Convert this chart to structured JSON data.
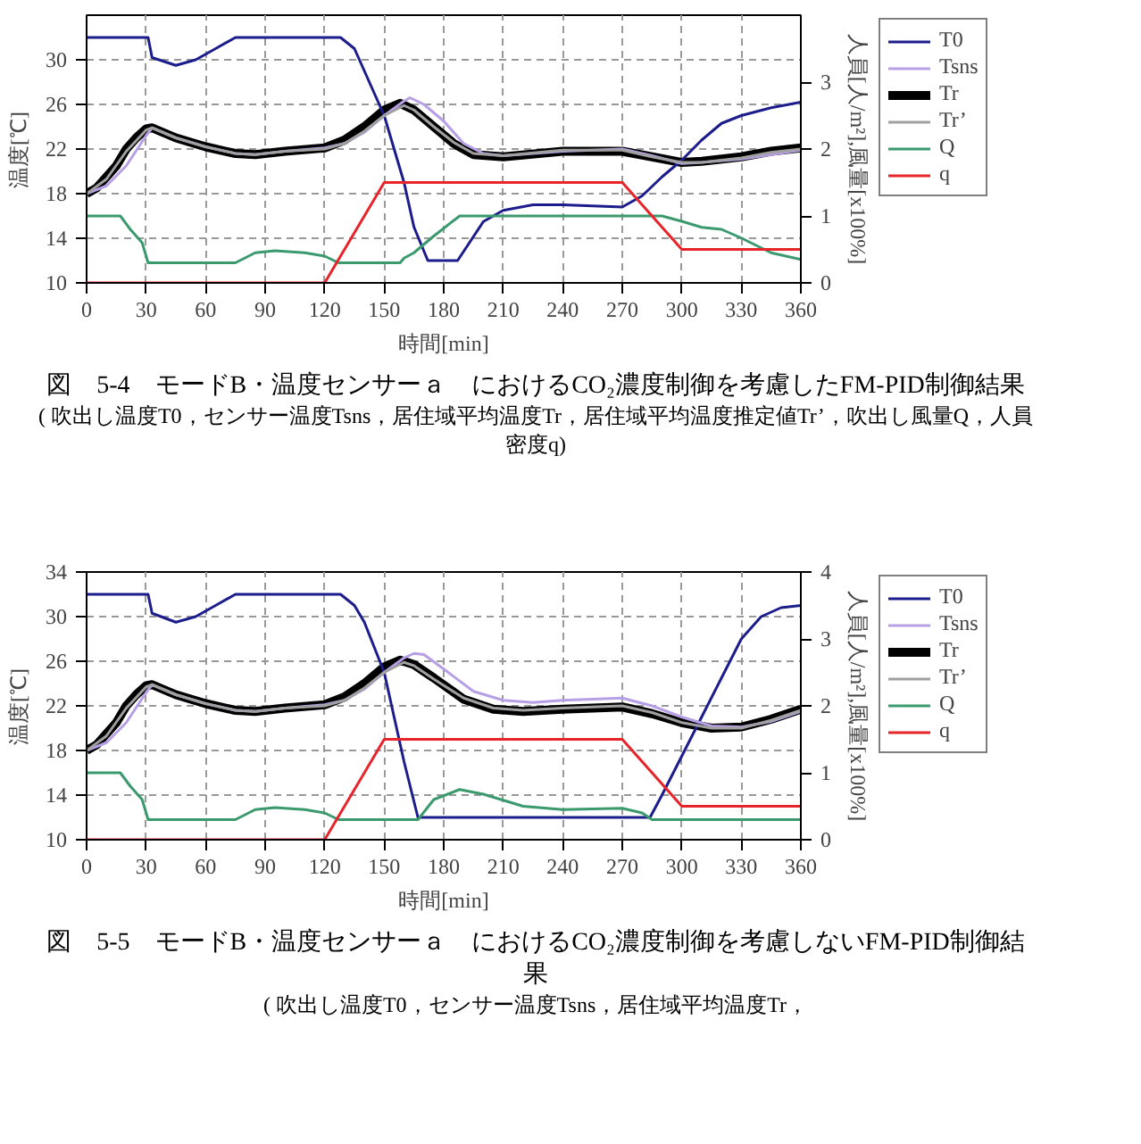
{
  "chart_data": [
    {
      "type": "line",
      "title": "図　5-4　モードB・温度センサーａ　におけるCO₂濃度制御を考慮したFM-PID制御結果",
      "annotations": [
        "( 吹出し温度T0，センサー温度Tsns，居住域平均温度Tr，居住域平均温度推定値Tr’，吹出し風量Q，人員密度q)"
      ],
      "xlabel": "時間[min]",
      "ylabel": "温度[℃]",
      "y2label": "人員[人/m²],風量[x100%]",
      "xlim": [
        0,
        360
      ],
      "xticks": [
        0,
        30,
        60,
        90,
        120,
        150,
        180,
        210,
        240,
        270,
        300,
        330,
        360
      ],
      "ylim": [
        10,
        34
      ],
      "yticks": [
        10,
        14,
        18,
        22,
        26,
        30
      ],
      "y2lim": [
        0,
        4
      ],
      "y2ticks": [
        0,
        1,
        2,
        3
      ],
      "grid": true,
      "legend": "right",
      "series": [
        {
          "name": "T0",
          "color": "#1c1c8c",
          "x": [
            0,
            31,
            33,
            45,
            55,
            65,
            75,
            128,
            135,
            140,
            150,
            160,
            165,
            172,
            187,
            200,
            210,
            225,
            240,
            270,
            280,
            290,
            300,
            310,
            320,
            330,
            345,
            360
          ],
          "values": [
            32,
            32,
            30.2,
            29.5,
            30,
            31,
            32,
            32,
            31,
            29,
            25,
            19,
            15,
            12,
            12,
            15.5,
            16.5,
            17,
            17,
            16.8,
            17.8,
            19.5,
            21,
            22.8,
            24.3,
            25,
            25.7,
            26.2
          ]
        },
        {
          "name": "Tsns",
          "color": "#b79fe6",
          "x": [
            0,
            10,
            20,
            30,
            33,
            45,
            60,
            75,
            85,
            100,
            120,
            130,
            140,
            150,
            160,
            163,
            170,
            180,
            190,
            200,
            210,
            240,
            270,
            285,
            300,
            310,
            330,
            360
          ],
          "values": [
            18,
            18.7,
            20.5,
            23.2,
            23.9,
            23,
            22.2,
            21.6,
            21.5,
            21.8,
            22.1,
            22.5,
            23.5,
            25,
            26.3,
            26.6,
            26,
            24.5,
            22.5,
            21.6,
            21.4,
            21.8,
            22,
            21.4,
            20.7,
            20.8,
            21.1,
            21.9
          ]
        },
        {
          "name": "Tr",
          "color": "#000000",
          "x": [
            0,
            5,
            10,
            15,
            20,
            25,
            30,
            33,
            45,
            60,
            75,
            85,
            100,
            120,
            130,
            140,
            150,
            158,
            165,
            175,
            185,
            195,
            210,
            240,
            270,
            285,
            300,
            310,
            330,
            345,
            360
          ],
          "values": [
            18,
            18.5,
            19.5,
            20.5,
            22,
            23,
            23.8,
            23.9,
            23,
            22.2,
            21.6,
            21.5,
            21.8,
            22.1,
            22.8,
            24,
            25.5,
            26.1,
            25.5,
            24,
            22.5,
            21.5,
            21.3,
            21.8,
            21.8,
            21.3,
            20.8,
            20.9,
            21.3,
            21.8,
            22.1
          ]
        },
        {
          "name": "Tr’",
          "color": "#a0a0a0",
          "x": [
            0,
            10,
            20,
            30,
            33,
            45,
            60,
            75,
            85,
            100,
            120,
            130,
            140,
            150,
            160,
            165,
            175,
            185,
            195,
            210,
            240,
            270,
            285,
            300,
            310,
            330,
            345,
            360
          ],
          "values": [
            18,
            19.3,
            21.8,
            23.7,
            23.9,
            23,
            22.2,
            21.6,
            21.5,
            21.8,
            22,
            22.5,
            23.6,
            25,
            25.9,
            25.5,
            24,
            22.6,
            21.6,
            21.4,
            21.9,
            21.9,
            21.3,
            20.8,
            20.8,
            21.2,
            21.7,
            22
          ]
        },
        {
          "name": "Q",
          "color": "#3a9a6e",
          "axis": "y2",
          "x": [
            0,
            17,
            22,
            28,
            31,
            75,
            85,
            95,
            110,
            120,
            127,
            158,
            160,
            165,
            175,
            188,
            290,
            300,
            310,
            320,
            330,
            345,
            360
          ],
          "values": [
            1,
            1,
            0.8,
            0.6,
            0.3,
            0.3,
            0.45,
            0.48,
            0.45,
            0.4,
            0.3,
            0.3,
            0.37,
            0.45,
            0.7,
            1,
            1,
            0.92,
            0.83,
            0.8,
            0.67,
            0.45,
            0.35
          ]
        },
        {
          "name": "q",
          "color": "#e8242b",
          "axis": "y2",
          "x": [
            0,
            120,
            150,
            270,
            300,
            360
          ],
          "values": [
            0,
            0,
            1.5,
            1.5,
            0.5,
            0.5
          ]
        }
      ]
    },
    {
      "type": "line",
      "title": "図　5-5　モードB・温度センサーａ　におけるCO₂濃度制御を考慮しないFM-PID制御結果",
      "annotations": [
        "( 吹出し温度T0，センサー温度Tsns，居住域平均温度Tr，"
      ],
      "xlabel": "時間[min]",
      "ylabel": "温度[℃]",
      "y2label": "人員[人/m²],風量[x100%]",
      "xlim": [
        0,
        360
      ],
      "xticks": [
        0,
        30,
        60,
        90,
        120,
        150,
        180,
        210,
        240,
        270,
        300,
        330,
        360
      ],
      "ylim": [
        10,
        34
      ],
      "yticks": [
        10,
        14,
        18,
        22,
        26,
        30,
        34
      ],
      "y2lim": [
        0,
        4
      ],
      "y2ticks": [
        0,
        1,
        2,
        3,
        4
      ],
      "grid": true,
      "legend": "right",
      "series": [
        {
          "name": "T0",
          "color": "#1c1c8c",
          "x": [
            0,
            31,
            33,
            45,
            55,
            65,
            75,
            128,
            135,
            140,
            150,
            155,
            160,
            167,
            284,
            290,
            300,
            310,
            320,
            330,
            340,
            350,
            360
          ],
          "values": [
            32,
            32,
            30.3,
            29.5,
            30,
            31,
            32,
            32,
            31,
            29.5,
            25,
            21,
            17,
            12,
            12,
            14,
            17.5,
            21,
            24.5,
            28,
            30,
            30.8,
            31
          ]
        },
        {
          "name": "Tsns",
          "color": "#b79fe6",
          "x": [
            0,
            10,
            20,
            30,
            33,
            45,
            60,
            75,
            85,
            100,
            120,
            130,
            140,
            150,
            160,
            165,
            170,
            180,
            195,
            210,
            225,
            240,
            270,
            285,
            300,
            315,
            330,
            345,
            360
          ],
          "values": [
            18,
            18.7,
            20.5,
            23.2,
            23.9,
            23,
            22.2,
            21.6,
            21.5,
            21.8,
            22.1,
            22.5,
            23.5,
            25,
            26.3,
            26.7,
            26.6,
            25.3,
            23.3,
            22.5,
            22.3,
            22.5,
            22.7,
            22,
            21,
            20.2,
            20.1,
            20.6,
            21.5
          ]
        },
        {
          "name": "Tr",
          "color": "#000000",
          "x": [
            0,
            5,
            10,
            15,
            20,
            25,
            30,
            33,
            45,
            60,
            75,
            85,
            100,
            120,
            130,
            140,
            150,
            158,
            165,
            175,
            190,
            205,
            220,
            240,
            270,
            285,
            300,
            315,
            330,
            345,
            360
          ],
          "values": [
            18,
            18.5,
            19.5,
            20.5,
            22,
            23,
            23.8,
            23.9,
            23,
            22.2,
            21.6,
            21.5,
            21.8,
            22.1,
            22.8,
            24,
            25.5,
            26.1,
            25.7,
            24.5,
            22.6,
            21.7,
            21.5,
            21.7,
            21.9,
            21.3,
            20.5,
            20,
            20.1,
            20.8,
            21.7
          ]
        },
        {
          "name": "Tr’",
          "color": "#a0a0a0",
          "x": [
            0,
            10,
            20,
            30,
            33,
            45,
            60,
            75,
            85,
            100,
            120,
            130,
            140,
            150,
            160,
            165,
            175,
            190,
            205,
            220,
            240,
            270,
            285,
            300,
            315,
            330,
            345,
            360
          ],
          "values": [
            18,
            19.3,
            21.8,
            23.7,
            23.9,
            23,
            22.2,
            21.6,
            21.5,
            21.8,
            22,
            22.5,
            23.6,
            25,
            25.9,
            25.6,
            24.4,
            22.7,
            21.8,
            21.6,
            21.8,
            22,
            21.4,
            20.5,
            20,
            20,
            20.7,
            21.6
          ]
        },
        {
          "name": "Q",
          "color": "#3a9a6e",
          "axis": "y2",
          "x": [
            0,
            17,
            22,
            28,
            31,
            75,
            85,
            95,
            110,
            120,
            127,
            167,
            175,
            188,
            200,
            220,
            240,
            270,
            280,
            285,
            360
          ],
          "values": [
            1,
            1,
            0.8,
            0.6,
            0.3,
            0.3,
            0.45,
            0.48,
            0.45,
            0.4,
            0.3,
            0.3,
            0.6,
            0.75,
            0.68,
            0.5,
            0.45,
            0.47,
            0.4,
            0.3,
            0.3
          ]
        },
        {
          "name": "q",
          "color": "#e8242b",
          "axis": "y2",
          "x": [
            0,
            120,
            150,
            270,
            300,
            360
          ],
          "values": [
            0,
            0,
            1.5,
            1.5,
            0.5,
            0.5
          ]
        }
      ]
    }
  ]
}
